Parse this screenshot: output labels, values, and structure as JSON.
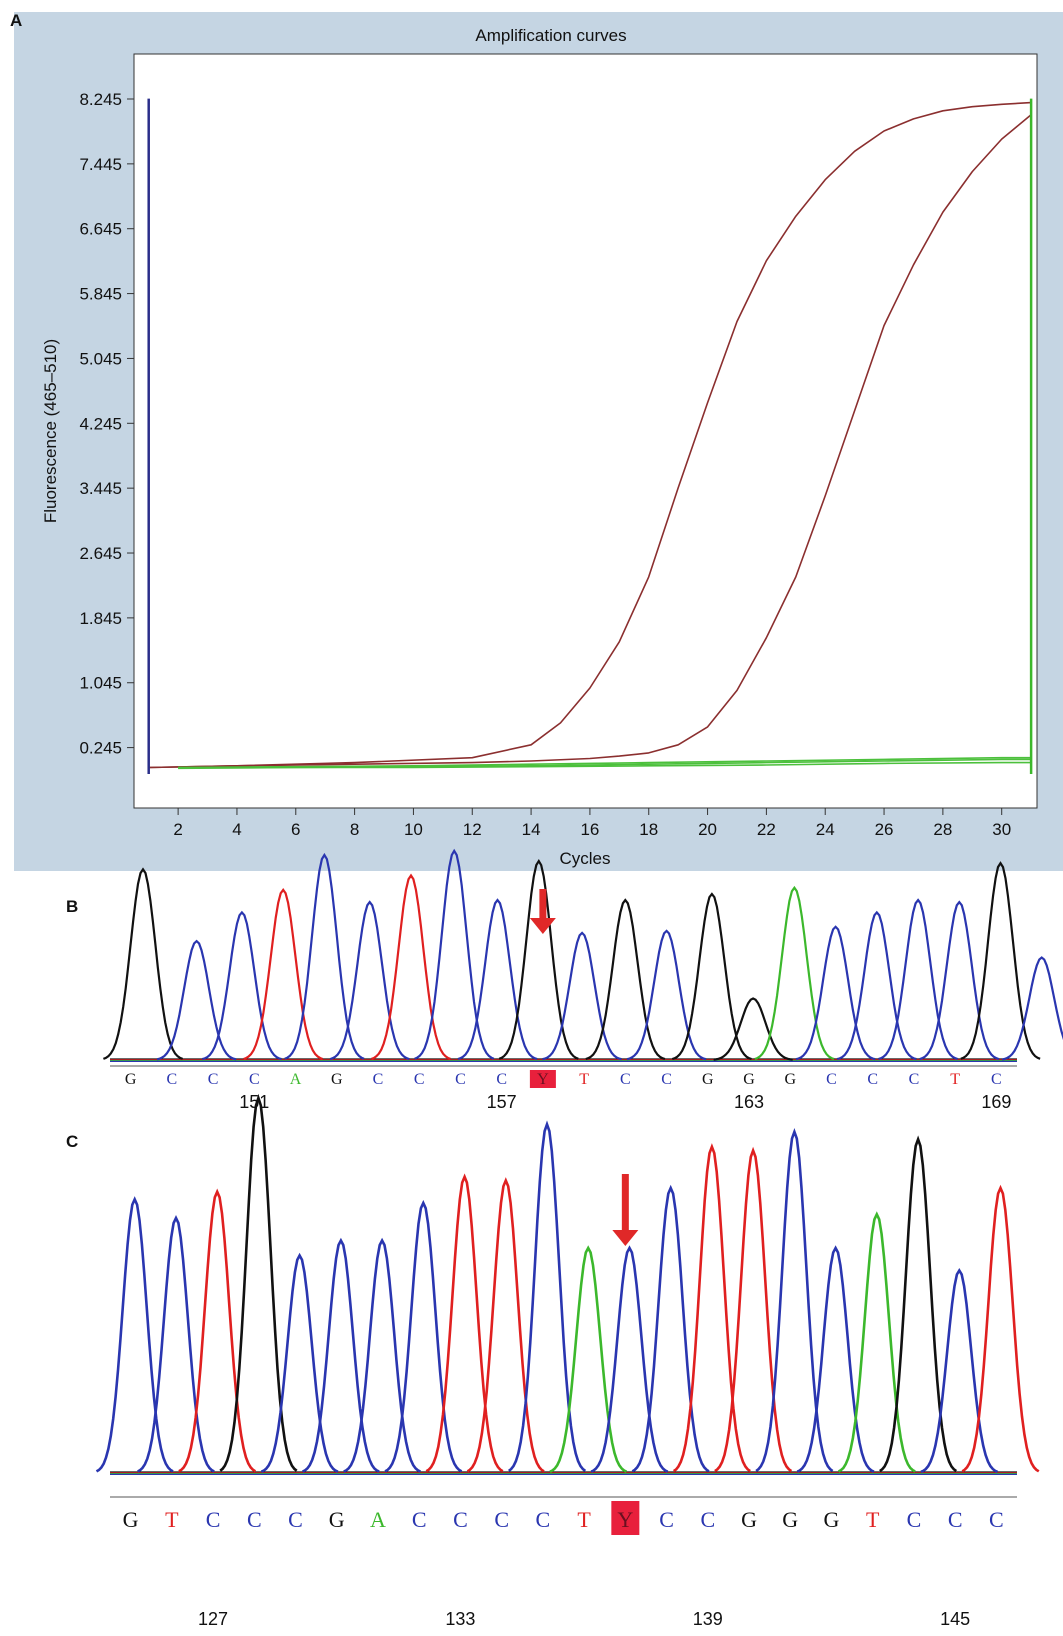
{
  "panels": {
    "a": {
      "letter": "A"
    },
    "b": {
      "letter": "B"
    },
    "c": {
      "letter": "C"
    }
  },
  "colors": {
    "panel_background": "#c5d5e3",
    "curve_positive": "#8b2f2f",
    "curve_negative": "#4cc03c",
    "base_A": "#3cb82c",
    "base_C": "#2a36b0",
    "base_G": "#111111",
    "base_T": "#e02020",
    "highlight": "#e8203c",
    "arrow": "#e02828"
  },
  "chart_data": [
    {
      "type": "line",
      "title": "Amplification curves",
      "xlabel": "Cycles",
      "ylabel": "Fluorescence (465–510)",
      "xlim": [
        0.5,
        31.2
      ],
      "ylim": [
        -0.5,
        8.8
      ],
      "x_ticks": [
        2,
        4,
        6,
        8,
        10,
        12,
        14,
        16,
        18,
        20,
        22,
        24,
        26,
        28,
        30
      ],
      "y_ticks": [
        0.245,
        1.045,
        1.845,
        2.645,
        3.445,
        4.245,
        5.045,
        5.845,
        6.645,
        7.445,
        8.245
      ],
      "y_tick_labels": [
        "0.245",
        "1.045",
        "1.845",
        "2.645",
        "3.445",
        "4.245",
        "5.045",
        "5.845",
        "6.645",
        "7.445",
        "8.245"
      ],
      "grid": false,
      "series": [
        {
          "color": "#8b2f2f",
          "x": [
            1,
            4,
            8,
            12,
            14,
            15,
            16,
            17,
            18,
            19,
            20,
            21,
            22,
            23,
            24,
            25,
            26,
            27,
            28,
            29,
            30,
            31
          ],
          "y": [
            0.0,
            0.02,
            0.06,
            0.12,
            0.28,
            0.55,
            0.98,
            1.55,
            2.35,
            3.45,
            4.5,
            5.5,
            6.25,
            6.8,
            7.25,
            7.6,
            7.85,
            8.0,
            8.1,
            8.15,
            8.18,
            8.2
          ]
        },
        {
          "color": "#8b2f2f",
          "x": [
            1,
            4,
            8,
            12,
            14,
            16,
            17,
            18,
            19,
            20,
            21,
            22,
            23,
            24,
            25,
            26,
            27,
            28,
            29,
            30,
            31
          ],
          "y": [
            0.0,
            0.02,
            0.04,
            0.06,
            0.08,
            0.11,
            0.14,
            0.18,
            0.28,
            0.5,
            0.95,
            1.6,
            2.35,
            3.35,
            4.4,
            5.45,
            6.2,
            6.85,
            7.35,
            7.75,
            8.05
          ]
        },
        {
          "color": "#4cc03c",
          "x": [
            2,
            6,
            10,
            14,
            18,
            22,
            26,
            30,
            31
          ],
          "y": [
            0.0,
            0.01,
            0.02,
            0.04,
            0.06,
            0.08,
            0.1,
            0.12,
            0.12
          ]
        },
        {
          "color": "#4cc03c",
          "x": [
            2,
            6,
            10,
            14,
            18,
            22,
            26,
            30,
            31
          ],
          "y": [
            0.0,
            0.0,
            0.01,
            0.02,
            0.04,
            0.06,
            0.08,
            0.1,
            0.1
          ]
        },
        {
          "color": "#4cc03c",
          "x": [
            2,
            6,
            10,
            14,
            18,
            22,
            26,
            30,
            31
          ],
          "y": [
            -0.01,
            0.0,
            0.0,
            0.01,
            0.02,
            0.03,
            0.05,
            0.06,
            0.06
          ]
        }
      ],
      "markers": [
        {
          "x": 1.0,
          "y_from": -0.08,
          "y_to": 8.25,
          "color": "#2a2e8a"
        },
        {
          "x": 31.0,
          "y_from": -0.08,
          "y_to": 8.25,
          "color": "#3cb82c"
        }
      ]
    },
    {
      "type": "line",
      "subtype": "sequencing-chromatogram",
      "sequence": [
        "G",
        "C",
        "C",
        "C",
        "A",
        "G",
        "C",
        "C",
        "C",
        "C",
        "Y",
        "T",
        "C",
        "C",
        "G",
        "G",
        "G",
        "C",
        "C",
        "C",
        "T",
        "C"
      ],
      "highlight_index": 10,
      "position_labels": [
        {
          "label": "151",
          "index": 3
        },
        {
          "label": "157",
          "index": 9
        },
        {
          "label": "163",
          "index": 15
        },
        {
          "label": "169",
          "index": 21
        }
      ],
      "peaks": [
        {
          "base": "G",
          "pos": 0.8,
          "height": 0.93
        },
        {
          "base": "C",
          "pos": 2.1,
          "height": 0.58
        },
        {
          "base": "C",
          "pos": 3.2,
          "height": 0.72
        },
        {
          "base": "T",
          "pos": 4.2,
          "height": 0.83
        },
        {
          "base": "C",
          "pos": 5.2,
          "height": 1.0
        },
        {
          "base": "C",
          "pos": 6.3,
          "height": 0.77
        },
        {
          "base": "T",
          "pos": 7.3,
          "height": 0.9
        },
        {
          "base": "C",
          "pos": 8.35,
          "height": 1.02
        },
        {
          "base": "C",
          "pos": 9.4,
          "height": 0.78
        },
        {
          "base": "G",
          "pos": 10.4,
          "height": 0.97
        },
        {
          "base": "C",
          "pos": 11.45,
          "height": 0.62
        },
        {
          "base": "G",
          "pos": 12.5,
          "height": 0.78
        },
        {
          "base": "C",
          "pos": 13.5,
          "height": 0.63
        },
        {
          "base": "G",
          "pos": 14.6,
          "height": 0.81
        },
        {
          "base": "G",
          "pos": 15.6,
          "height": 0.3
        },
        {
          "base": "A",
          "pos": 16.6,
          "height": 0.84
        },
        {
          "base": "C",
          "pos": 17.6,
          "height": 0.65
        },
        {
          "base": "C",
          "pos": 18.6,
          "height": 0.72
        },
        {
          "base": "C",
          "pos": 19.6,
          "height": 0.78
        },
        {
          "base": "C",
          "pos": 20.6,
          "height": 0.77
        },
        {
          "base": "G",
          "pos": 21.6,
          "height": 0.96
        },
        {
          "base": "C",
          "pos": 22.6,
          "height": 0.5
        }
      ]
    },
    {
      "type": "line",
      "subtype": "sequencing-chromatogram",
      "sequence": [
        "G",
        "T",
        "C",
        "C",
        "C",
        "G",
        "A",
        "C",
        "C",
        "C",
        "C",
        "T",
        "Y",
        "C",
        "C",
        "G",
        "G",
        "G",
        "T",
        "C",
        "C",
        "C"
      ],
      "highlight_index": 12,
      "position_labels": [
        {
          "label": "127",
          "index": 2
        },
        {
          "label": "133",
          "index": 8
        },
        {
          "label": "139",
          "index": 14
        },
        {
          "label": "145",
          "index": 20
        }
      ],
      "peaks": [
        {
          "base": "C",
          "pos": 0.6,
          "height": 0.73
        },
        {
          "base": "C",
          "pos": 1.6,
          "height": 0.68
        },
        {
          "base": "T",
          "pos": 2.6,
          "height": 0.75
        },
        {
          "base": "G",
          "pos": 3.6,
          "height": 1.0
        },
        {
          "base": "C",
          "pos": 4.6,
          "height": 0.58
        },
        {
          "base": "C",
          "pos": 5.6,
          "height": 0.62
        },
        {
          "base": "C",
          "pos": 6.6,
          "height": 0.62
        },
        {
          "base": "C",
          "pos": 7.6,
          "height": 0.72
        },
        {
          "base": "T",
          "pos": 8.6,
          "height": 0.79
        },
        {
          "base": "T",
          "pos": 9.6,
          "height": 0.78
        },
        {
          "base": "C",
          "pos": 10.6,
          "height": 0.93
        },
        {
          "base": "A",
          "pos": 11.6,
          "height": 0.6
        },
        {
          "base": "C",
          "pos": 12.6,
          "height": 0.6
        },
        {
          "base": "C",
          "pos": 13.6,
          "height": 0.76
        },
        {
          "base": "T",
          "pos": 14.6,
          "height": 0.87
        },
        {
          "base": "T",
          "pos": 15.6,
          "height": 0.86
        },
        {
          "base": "C",
          "pos": 16.6,
          "height": 0.91
        },
        {
          "base": "C",
          "pos": 17.6,
          "height": 0.6
        },
        {
          "base": "A",
          "pos": 18.6,
          "height": 0.69
        },
        {
          "base": "G",
          "pos": 19.6,
          "height": 0.89
        },
        {
          "base": "C",
          "pos": 20.6,
          "height": 0.54
        },
        {
          "base": "T",
          "pos": 21.6,
          "height": 0.76
        }
      ]
    }
  ]
}
